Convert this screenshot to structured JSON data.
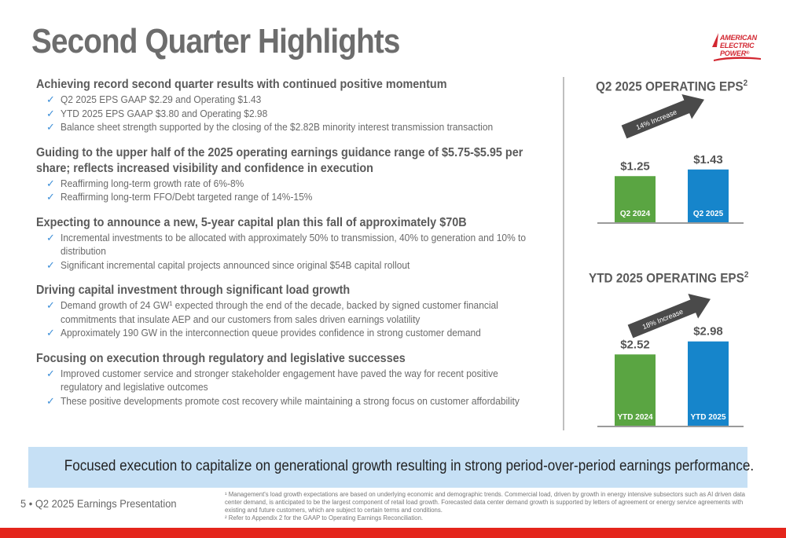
{
  "title": "Second Quarter Highlights",
  "logo": {
    "line1": "AMERICAN",
    "line2": "ELECTRIC",
    "line3": "POWER",
    "reg": "®"
  },
  "sections": [
    {
      "heading": "Achieving record second quarter results with continued positive momentum",
      "bullets": [
        "Q2 2025 EPS GAAP $2.29 and Operating $1.43",
        "YTD 2025 EPS GAAP $3.80 and Operating $2.98",
        "Balance sheet strength supported by the closing of the $2.82B minority interest transmission transaction"
      ]
    },
    {
      "heading": "Guiding to the upper half of the 2025 operating earnings guidance range of $5.75-$5.95 per share; reflects increased visibility and confidence in execution",
      "bullets": [
        "Reaffirming long-term growth rate of 6%-8%",
        "Reaffirming long-term FFO/Debt targeted range of 14%-15%"
      ]
    },
    {
      "heading": "Expecting to announce a new, 5-year capital plan this fall of approximately $70B",
      "bullets": [
        "Incremental investments to be allocated with approximately 50% to transmission, 40% to generation and 10% to distribution",
        "Significant incremental capital projects announced since original $54B capital rollout"
      ]
    },
    {
      "heading": "Driving capital investment through significant load growth",
      "bullets": [
        "Demand growth of 24 GW¹ expected through the end of the decade, backed by signed customer financial commitments that insulate AEP and our customers from sales driven earnings volatility",
        "Approximately 190 GW in the interconnection queue provides confidence in strong customer demand"
      ]
    },
    {
      "heading": "Focusing on execution through regulatory and legislative successes",
      "bullets": [
        "Improved customer service and stronger stakeholder engagement have paved the way for recent positive regulatory and legislative outcomes",
        "These positive developments promote cost recovery while maintaining a strong focus on customer affordability"
      ]
    }
  ],
  "check_glyph": "✓",
  "chart_data": [
    {
      "type": "bar",
      "title": "Q2 2025 OPERATING EPS",
      "title_sup": "2",
      "categories": [
        "Q2 2024",
        "Q2 2025"
      ],
      "values": [
        1.25,
        1.43
      ],
      "value_labels": [
        "$1.25",
        "$1.43"
      ],
      "colors": [
        "#5aa542",
        "#1685cb"
      ],
      "annotation": "14% Increase"
    },
    {
      "type": "bar",
      "title": "YTD 2025 OPERATING EPS",
      "title_sup": "2",
      "categories": [
        "YTD 2024",
        "YTD 2025"
      ],
      "values": [
        2.52,
        2.98
      ],
      "value_labels": [
        "$2.52",
        "$2.98"
      ],
      "colors": [
        "#5aa542",
        "#1685cb"
      ],
      "annotation": "18% Increase"
    }
  ],
  "banner": "Focused execution to capitalize on generational growth resulting in strong period-over-period earnings performance.",
  "footer_left": "5 • Q2 2025 Earnings Presentation",
  "footnotes": [
    "¹ Management's load growth expectations are based on underlying economic and demographic trends. Commercial load, driven by growth in energy intensive subsectors such as AI driven data center demand, is anticipated to be the largest component of retail load growth. Forecasted data center demand growth is supported by letters of agreement or energy service agreements with existing and future customers, which are subject to certain terms and conditions.",
    "² Refer to Appendix 2 for the GAAP to Operating Earnings Reconciliation."
  ],
  "colors": {
    "brand_red": "#e4251b",
    "banner_bg": "#c6e0f5",
    "check_blue": "#3d8fd8"
  }
}
